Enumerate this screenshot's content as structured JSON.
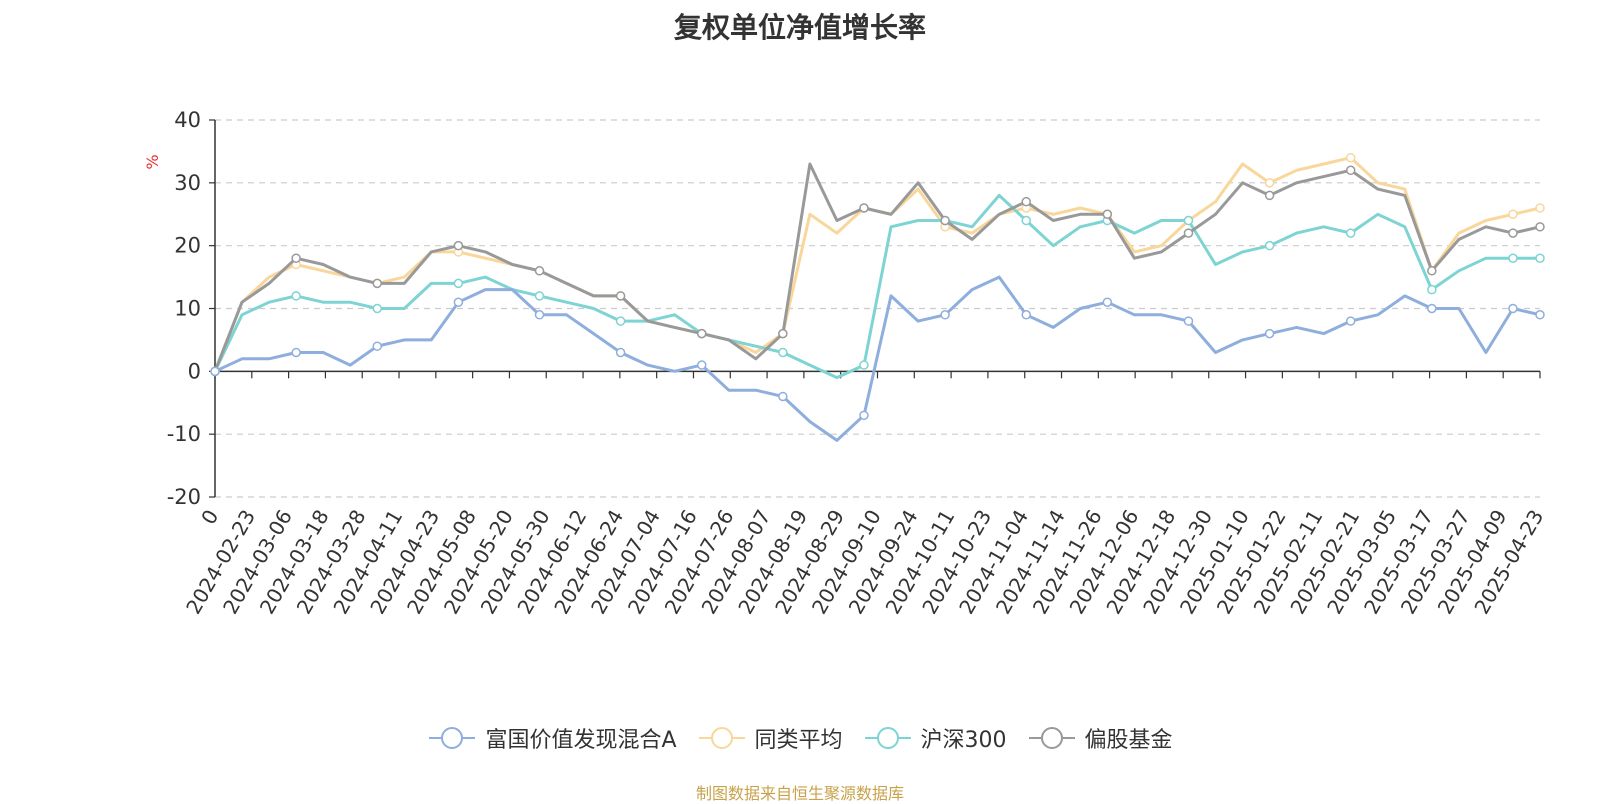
{
  "chart_data": {
    "type": "line",
    "title": "复权单位净值增长率",
    "ylabel": "%",
    "ylim": [
      -20,
      40
    ],
    "yticks": [
      -20,
      -10,
      0,
      10,
      20,
      30,
      40
    ],
    "grid": true,
    "legend_position": "bottom",
    "x_tick_labels": [
      "0",
      "2024-02-23",
      "2024-03-06",
      "2024-03-18",
      "2024-03-28",
      "2024-04-11",
      "2024-04-23",
      "2024-05-08",
      "2024-05-20",
      "2024-05-30",
      "2024-06-12",
      "2024-06-24",
      "2024-07-04",
      "2024-07-16",
      "2024-07-26",
      "2024-08-07",
      "2024-08-19",
      "2024-08-29",
      "2024-09-10",
      "2024-09-24",
      "2024-10-11",
      "2024-10-23",
      "2024-11-04",
      "2024-11-14",
      "2024-11-26",
      "2024-12-06",
      "2024-12-18",
      "2024-12-30",
      "2025-01-10",
      "2025-01-22",
      "2025-02-11",
      "2025-02-21",
      "2025-03-05",
      "2025-03-17",
      "2025-03-27",
      "2025-04-09",
      "2025-04-23"
    ],
    "series": [
      {
        "name": "富国价值发现混合A",
        "color": "#8eaedd",
        "values": [
          0,
          2,
          2,
          3,
          3,
          1,
          4,
          5,
          5,
          11,
          13,
          13,
          9,
          9,
          6,
          3,
          1,
          0,
          1,
          -3,
          -3,
          -4,
          -8,
          -11,
          -7,
          12,
          8,
          9,
          13,
          15,
          9,
          7,
          10,
          11,
          9,
          9,
          8,
          3,
          5,
          6,
          7,
          6,
          8,
          9,
          12,
          10,
          10,
          3,
          10,
          9
        ]
      },
      {
        "name": "同类平均",
        "color": "#f9d69a",
        "values": [
          0,
          11,
          15,
          17,
          16,
          15,
          14,
          15,
          19,
          19,
          18,
          17,
          16,
          14,
          12,
          12,
          8,
          7,
          6,
          5,
          3,
          6,
          25,
          22,
          26,
          25,
          29,
          23,
          22,
          25,
          26,
          25,
          26,
          25,
          19,
          20,
          24,
          27,
          33,
          30,
          32,
          33,
          34,
          30,
          29,
          16,
          22,
          24,
          25,
          26
        ]
      },
      {
        "name": "沪深300",
        "color": "#7ed3d3",
        "values": [
          0,
          9,
          11,
          12,
          11,
          11,
          10,
          10,
          14,
          14,
          15,
          13,
          12,
          11,
          10,
          8,
          8,
          9,
          6,
          5,
          4,
          3,
          1,
          -1,
          1,
          23,
          24,
          24,
          23,
          28,
          24,
          20,
          23,
          24,
          22,
          24,
          24,
          17,
          19,
          20,
          22,
          23,
          22,
          25,
          23,
          13,
          16,
          18,
          18,
          18
        ]
      },
      {
        "name": "偏股基金",
        "color": "#999999",
        "values": [
          0,
          11,
          14,
          18,
          17,
          15,
          14,
          14,
          19,
          20,
          19,
          17,
          16,
          14,
          12,
          12,
          8,
          7,
          6,
          5,
          2,
          6,
          33,
          24,
          26,
          25,
          30,
          24,
          21,
          25,
          27,
          24,
          25,
          25,
          18,
          19,
          22,
          25,
          30,
          28,
          30,
          31,
          32,
          29,
          28,
          16,
          21,
          23,
          22,
          23
        ]
      }
    ]
  },
  "source": "制图数据来自恒生聚源数据库"
}
